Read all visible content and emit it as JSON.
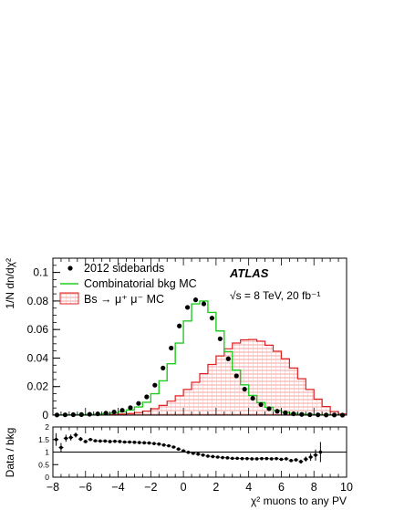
{
  "chart_data": [
    {
      "type": "line",
      "ylabel": "1/N dn/dχ²",
      "xlim": [
        -8,
        10
      ],
      "ylim": [
        0,
        0.11
      ],
      "y_ticks": [
        "0",
        "0.02",
        "0.04",
        "0.06",
        "0.08",
        "0.1"
      ],
      "bin_width": 0.5,
      "experiment": "ATLAS",
      "energy_label": "√s = 8 TeV, 20 fb⁻¹",
      "legend": {
        "placement": "top-left",
        "entries": [
          "2012 sidebands",
          "Combinatorial bkg MC",
          "Bs → μ⁺ μ⁻ MC"
        ]
      },
      "series": [
        {
          "name": "2012 sidebands",
          "style": "points",
          "color": "#000000",
          "x": [
            -7.75,
            -7.25,
            -6.75,
            -6.25,
            -5.75,
            -5.25,
            -4.75,
            -4.25,
            -3.75,
            -3.25,
            -2.75,
            -2.25,
            -1.75,
            -1.25,
            -0.75,
            -0.25,
            0.25,
            0.75,
            1.25,
            1.75,
            2.25,
            2.75,
            3.25,
            3.75,
            4.25,
            4.75,
            5.25,
            5.75,
            6.25,
            6.75,
            7.25,
            7.75,
            8.25,
            8.75,
            9.25,
            9.75
          ],
          "y": [
            0.0001,
            0.0002,
            0.0003,
            0.0004,
            0.0006,
            0.0009,
            0.0014,
            0.0022,
            0.0034,
            0.0052,
            0.0082,
            0.0128,
            0.021,
            0.033,
            0.047,
            0.0625,
            0.0755,
            0.0808,
            0.078,
            0.068,
            0.0535,
            0.0395,
            0.0275,
            0.0182,
            0.0118,
            0.0074,
            0.0045,
            0.0027,
            0.0016,
            0.0009,
            0.0005,
            0.0003,
            0.0002,
            0.0001,
            0.0001,
            0.0
          ]
        },
        {
          "name": "Combinatorial bkg MC",
          "style": "step",
          "color": "#22cc22",
          "x": [
            -7.75,
            -7.25,
            -6.75,
            -6.25,
            -5.75,
            -5.25,
            -4.75,
            -4.25,
            -3.75,
            -3.25,
            -2.75,
            -2.25,
            -1.75,
            -1.25,
            -0.75,
            -0.25,
            0.25,
            0.75,
            1.25,
            1.75,
            2.25,
            2.75,
            3.25,
            3.75,
            4.25,
            4.75,
            5.25,
            5.75,
            6.25,
            6.75,
            7.25,
            7.75,
            8.25,
            8.75,
            9.25,
            9.75
          ],
          "y": [
            0.0001,
            0.0001,
            0.0002,
            0.0003,
            0.0004,
            0.0006,
            0.001,
            0.0015,
            0.0023,
            0.0036,
            0.0057,
            0.009,
            0.015,
            0.024,
            0.036,
            0.0505,
            0.066,
            0.078,
            0.08,
            0.072,
            0.059,
            0.0445,
            0.0315,
            0.0212,
            0.0138,
            0.0088,
            0.0055,
            0.0033,
            0.002,
            0.0012,
            0.0007,
            0.0004,
            0.0002,
            0.0001,
            0.0001,
            0.0
          ]
        },
        {
          "name": "Bs → μ⁺ μ⁻ MC",
          "style": "filled-step",
          "color": "#e02020",
          "x": [
            -7.75,
            -7.25,
            -6.75,
            -6.25,
            -5.75,
            -5.25,
            -4.75,
            -4.25,
            -3.75,
            -3.25,
            -2.75,
            -2.25,
            -1.75,
            -1.25,
            -0.75,
            -0.25,
            0.25,
            0.75,
            1.25,
            1.75,
            2.25,
            2.75,
            3.25,
            3.75,
            4.25,
            4.75,
            5.25,
            5.75,
            6.25,
            6.75,
            7.25,
            7.75,
            8.25,
            8.75,
            9.25,
            9.75
          ],
          "y": [
            0.0,
            0.0,
            0.0,
            0.0,
            0.0001,
            0.0001,
            0.0002,
            0.0004,
            0.0007,
            0.0011,
            0.0018,
            0.0028,
            0.0045,
            0.0068,
            0.0098,
            0.0135,
            0.018,
            0.023,
            0.029,
            0.0355,
            0.0415,
            0.0465,
            0.0505,
            0.0528,
            0.053,
            0.0518,
            0.049,
            0.0448,
            0.0395,
            0.033,
            0.0255,
            0.018,
            0.0112,
            0.006,
            0.0025,
            0.0008
          ]
        }
      ]
    },
    {
      "type": "scatter",
      "ylabel": "Data / bkg",
      "xlabel": "χ² muons to any PV",
      "xlim": [
        -8,
        10
      ],
      "ylim": [
        0,
        2
      ],
      "x_ticks": [
        "−8",
        "−6",
        "−4",
        "−2",
        "0",
        "2",
        "4",
        "6",
        "8",
        "10"
      ],
      "y_ticks": [
        "0",
        "0.5",
        "1",
        "1.5",
        "2"
      ],
      "reference_line": 1,
      "series": [
        {
          "name": "",
          "x": [
            -7.8,
            -7.5,
            -7.2,
            -6.9,
            -6.6,
            -6.3,
            -6.0,
            -5.7,
            -5.4,
            -5.1,
            -4.8,
            -4.5,
            -4.2,
            -3.9,
            -3.6,
            -3.3,
            -3.0,
            -2.7,
            -2.4,
            -2.1,
            -1.8,
            -1.5,
            -1.2,
            -0.9,
            -0.6,
            -0.3,
            0.0,
            0.3,
            0.6,
            0.9,
            1.2,
            1.5,
            1.8,
            2.1,
            2.4,
            2.7,
            3.0,
            3.3,
            3.6,
            3.9,
            4.2,
            4.5,
            4.8,
            5.1,
            5.4,
            5.7,
            6.0,
            6.3,
            6.6,
            6.9,
            7.2,
            7.5,
            7.8,
            8.1,
            8.4
          ],
          "y": [
            1.5,
            1.18,
            1.55,
            1.58,
            1.68,
            1.52,
            1.42,
            1.5,
            1.45,
            1.44,
            1.44,
            1.42,
            1.43,
            1.42,
            1.4,
            1.4,
            1.39,
            1.38,
            1.37,
            1.36,
            1.34,
            1.32,
            1.28,
            1.25,
            1.2,
            1.12,
            1.05,
            0.99,
            0.95,
            0.92,
            0.88,
            0.84,
            0.82,
            0.8,
            0.78,
            0.77,
            0.75,
            0.75,
            0.74,
            0.74,
            0.73,
            0.73,
            0.74,
            0.74,
            0.73,
            0.74,
            0.71,
            0.73,
            0.66,
            0.69,
            0.62,
            0.72,
            0.8,
            0.88,
            1.0
          ],
          "err": [
            0.25,
            0.18,
            0.14,
            0.12,
            0.1,
            0.08,
            0.06,
            0.05,
            0.04,
            0.04,
            0.03,
            0.03,
            0.03,
            0.02,
            0.02,
            0.02,
            0.02,
            0.02,
            0.02,
            0.02,
            0.02,
            0.02,
            0.02,
            0.02,
            0.02,
            0.02,
            0.02,
            0.02,
            0.02,
            0.02,
            0.02,
            0.02,
            0.02,
            0.02,
            0.02,
            0.02,
            0.02,
            0.02,
            0.02,
            0.02,
            0.02,
            0.02,
            0.02,
            0.03,
            0.03,
            0.03,
            0.04,
            0.04,
            0.05,
            0.06,
            0.08,
            0.1,
            0.15,
            0.22,
            0.4
          ]
        }
      ]
    }
  ]
}
